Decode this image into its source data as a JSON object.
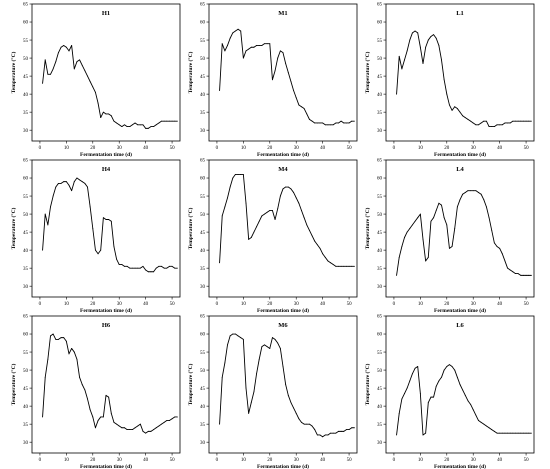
{
  "chart_data": [
    {
      "type": "line",
      "title": "H1",
      "xlabel": "Fermentation time (d)",
      "ylabel": "Temperature (°C)",
      "xlim": [
        -3,
        53
      ],
      "ylim": [
        27,
        65
      ],
      "xticks": [
        0,
        10,
        20,
        30,
        40,
        50
      ],
      "yticks": [
        30,
        35,
        40,
        45,
        50,
        55,
        60,
        65
      ],
      "x": [
        1,
        2,
        3,
        4,
        5,
        6,
        7,
        8,
        9,
        10,
        11,
        12,
        13,
        14,
        15,
        16,
        17,
        18,
        19,
        20,
        21,
        22,
        23,
        24,
        25,
        26,
        27,
        28,
        29,
        30,
        31,
        32,
        33,
        34,
        35,
        36,
        37,
        38,
        39,
        40,
        41,
        42,
        43,
        44,
        45,
        46,
        47,
        48,
        49,
        50,
        51,
        52
      ],
      "y": [
        43.0,
        49.5,
        45.5,
        45.5,
        47.0,
        49.0,
        51.5,
        53.0,
        53.5,
        53.0,
        52.0,
        53.5,
        47.0,
        49.0,
        49.5,
        48.0,
        46.5,
        45.0,
        43.5,
        42.0,
        40.5,
        37.5,
        33.5,
        35.0,
        34.5,
        34.5,
        34.0,
        32.5,
        32.0,
        31.5,
        31.0,
        31.5,
        31.0,
        31.0,
        31.5,
        32.0,
        31.5,
        31.5,
        31.5,
        30.5,
        30.5,
        31.0,
        31.0,
        31.5,
        32.0,
        32.5,
        32.5,
        32.5,
        32.5,
        32.5,
        32.5,
        32.5
      ]
    },
    {
      "type": "line",
      "title": "M1",
      "xlabel": "Fermentation time (d)",
      "ylabel": "Temperature (°C)",
      "xlim": [
        -3,
        53
      ],
      "ylim": [
        27,
        65
      ],
      "xticks": [
        0,
        10,
        20,
        30,
        40,
        50
      ],
      "yticks": [
        30,
        35,
        40,
        45,
        50,
        55,
        60,
        65
      ],
      "x": [
        1,
        2,
        3,
        4,
        5,
        6,
        7,
        8,
        9,
        10,
        11,
        12,
        13,
        14,
        15,
        16,
        17,
        18,
        19,
        20,
        21,
        22,
        23,
        24,
        25,
        26,
        27,
        28,
        29,
        30,
        31,
        32,
        33,
        34,
        35,
        36,
        37,
        38,
        39,
        40,
        41,
        42,
        43,
        44,
        45,
        46,
        47,
        48,
        49,
        50,
        51,
        52
      ],
      "y": [
        41.0,
        54.0,
        52.0,
        53.5,
        55.5,
        57.0,
        57.5,
        58.0,
        57.5,
        50.0,
        52.0,
        52.5,
        53.0,
        53.0,
        53.5,
        53.5,
        53.5,
        54.0,
        54.0,
        54.0,
        44.0,
        46.5,
        50.0,
        52.0,
        51.5,
        48.5,
        46.0,
        43.5,
        41.0,
        39.0,
        37.0,
        36.5,
        36.0,
        34.5,
        33.0,
        32.5,
        32.0,
        32.0,
        32.0,
        32.0,
        31.5,
        31.5,
        31.5,
        31.5,
        32.0,
        32.0,
        32.5,
        32.0,
        32.0,
        32.0,
        32.5,
        32.5
      ]
    },
    {
      "type": "line",
      "title": "L1",
      "xlabel": "Fermentation time (d)",
      "ylabel": "Temperature (°C)",
      "xlim": [
        -3,
        53
      ],
      "ylim": [
        27,
        65
      ],
      "xticks": [
        0,
        10,
        20,
        30,
        40,
        50
      ],
      "yticks": [
        30,
        35,
        40,
        45,
        50,
        55,
        60,
        65
      ],
      "x": [
        1,
        2,
        3,
        4,
        5,
        6,
        7,
        8,
        9,
        10,
        11,
        12,
        13,
        14,
        15,
        16,
        17,
        18,
        19,
        20,
        21,
        22,
        23,
        24,
        25,
        26,
        27,
        28,
        29,
        30,
        31,
        32,
        33,
        34,
        35,
        36,
        37,
        38,
        39,
        40,
        41,
        42,
        43,
        44,
        45,
        46,
        47,
        48,
        49,
        50,
        51,
        52
      ],
      "y": [
        40.0,
        50.5,
        47.0,
        49.5,
        52.0,
        55.0,
        57.0,
        57.5,
        57.0,
        53.0,
        48.5,
        53.0,
        55.0,
        56.0,
        56.5,
        55.5,
        53.5,
        49.5,
        44.0,
        40.0,
        37.0,
        35.5,
        36.5,
        36.0,
        35.0,
        34.0,
        33.5,
        33.0,
        32.5,
        32.0,
        31.5,
        31.5,
        32.0,
        32.5,
        32.5,
        31.0,
        31.0,
        31.0,
        31.5,
        31.5,
        31.5,
        32.0,
        32.0,
        32.0,
        32.5,
        32.5,
        32.5,
        32.5,
        32.5,
        32.5,
        32.5,
        32.5
      ]
    },
    {
      "type": "line",
      "title": "H4",
      "xlabel": "Fermentation time (d)",
      "ylabel": "Temperature (°C)",
      "xlim": [
        -3,
        53
      ],
      "ylim": [
        27,
        65
      ],
      "xticks": [
        0,
        10,
        20,
        30,
        40,
        50
      ],
      "yticks": [
        30,
        35,
        40,
        45,
        50,
        55,
        60,
        65
      ],
      "x": [
        1,
        2,
        3,
        4,
        5,
        6,
        7,
        8,
        9,
        10,
        11,
        12,
        13,
        14,
        15,
        16,
        17,
        18,
        19,
        20,
        21,
        22,
        23,
        24,
        25,
        26,
        27,
        28,
        29,
        30,
        31,
        32,
        33,
        34,
        35,
        36,
        37,
        38,
        39,
        40,
        41,
        42,
        43,
        44,
        45,
        46,
        47,
        48,
        49,
        50,
        51,
        52
      ],
      "y": [
        40.0,
        50.0,
        47.0,
        52.0,
        55.0,
        57.5,
        58.5,
        58.5,
        59.0,
        59.0,
        58.0,
        56.5,
        59.0,
        60.0,
        59.5,
        59.0,
        58.5,
        57.5,
        52.0,
        46.0,
        40.0,
        39.0,
        40.0,
        49.0,
        48.5,
        48.5,
        48.0,
        41.0,
        37.5,
        36.0,
        36.0,
        35.5,
        35.5,
        35.0,
        35.0,
        35.0,
        35.0,
        35.0,
        35.5,
        34.5,
        34.0,
        34.0,
        34.0,
        35.0,
        35.5,
        35.5,
        35.0,
        35.0,
        35.5,
        35.5,
        35.0,
        35.0
      ]
    },
    {
      "type": "line",
      "title": "M4",
      "xlabel": "Fermentation time (d)",
      "ylabel": "Temperature (°C)",
      "xlim": [
        -3,
        53
      ],
      "ylim": [
        27,
        65
      ],
      "xticks": [
        0,
        10,
        20,
        30,
        40,
        50
      ],
      "yticks": [
        30,
        35,
        40,
        45,
        50,
        55,
        60,
        65
      ],
      "x": [
        1,
        2,
        3,
        4,
        5,
        6,
        7,
        8,
        9,
        10,
        11,
        12,
        13,
        14,
        15,
        16,
        17,
        18,
        19,
        20,
        21,
        22,
        23,
        24,
        25,
        26,
        27,
        28,
        29,
        30,
        31,
        32,
        33,
        34,
        35,
        36,
        37,
        38,
        39,
        40,
        41,
        42,
        43,
        44,
        45,
        46,
        47,
        48,
        49,
        50,
        51,
        52
      ],
      "y": [
        36.5,
        49.5,
        52.0,
        54.5,
        57.5,
        60.0,
        61.0,
        61.0,
        61.0,
        61.0,
        53.0,
        43.0,
        43.5,
        45.0,
        46.5,
        48.0,
        49.5,
        50.0,
        50.5,
        51.0,
        51.0,
        48.5,
        51.5,
        55.0,
        57.0,
        57.5,
        57.5,
        57.0,
        56.0,
        54.5,
        53.0,
        51.0,
        49.0,
        47.0,
        45.5,
        44.0,
        42.5,
        41.5,
        40.5,
        39.0,
        38.0,
        37.0,
        36.5,
        36.0,
        35.5,
        35.5,
        35.5,
        35.5,
        35.5,
        35.5,
        35.5,
        35.5
      ]
    },
    {
      "type": "line",
      "title": "L4",
      "xlabel": "Fermentation time (d)",
      "ylabel": "Temperature (°C)",
      "xlim": [
        -3,
        53
      ],
      "ylim": [
        27,
        65
      ],
      "xticks": [
        0,
        10,
        20,
        30,
        40,
        50
      ],
      "yticks": [
        30,
        35,
        40,
        45,
        50,
        55,
        60,
        65
      ],
      "x": [
        1,
        2,
        3,
        4,
        5,
        6,
        7,
        8,
        9,
        10,
        11,
        12,
        13,
        14,
        15,
        16,
        17,
        18,
        19,
        20,
        21,
        22,
        23,
        24,
        25,
        26,
        27,
        28,
        29,
        30,
        31,
        32,
        33,
        34,
        35,
        36,
        37,
        38,
        39,
        40,
        41,
        42,
        43,
        44,
        45,
        46,
        47,
        48,
        49,
        50,
        51,
        52
      ],
      "y": [
        33.0,
        38.0,
        41.0,
        43.5,
        45.0,
        46.0,
        47.0,
        48.0,
        49.0,
        50.0,
        43.0,
        37.0,
        38.0,
        48.0,
        49.0,
        51.0,
        53.0,
        52.5,
        49.0,
        47.0,
        40.5,
        41.0,
        46.0,
        52.0,
        54.0,
        55.5,
        56.0,
        56.5,
        56.5,
        56.5,
        56.5,
        56.0,
        55.5,
        54.0,
        52.0,
        49.0,
        45.5,
        42.0,
        41.0,
        40.5,
        39.0,
        37.0,
        35.0,
        34.5,
        34.0,
        33.5,
        33.5,
        33.0,
        33.0,
        33.0,
        33.0,
        33.0
      ]
    },
    {
      "type": "line",
      "title": "H6",
      "xlabel": "Fermentation time (d)",
      "ylabel": "Temperature (°C)",
      "xlim": [
        -3,
        53
      ],
      "ylim": [
        27,
        65
      ],
      "xticks": [
        0,
        10,
        20,
        30,
        40,
        50
      ],
      "yticks": [
        30,
        35,
        40,
        45,
        50,
        55,
        60,
        65
      ],
      "x": [
        1,
        2,
        3,
        4,
        5,
        6,
        7,
        8,
        9,
        10,
        11,
        12,
        13,
        14,
        15,
        16,
        17,
        18,
        19,
        20,
        21,
        22,
        23,
        24,
        25,
        26,
        27,
        28,
        29,
        30,
        31,
        32,
        33,
        34,
        35,
        36,
        37,
        38,
        39,
        40,
        41,
        42,
        43,
        44,
        45,
        46,
        47,
        48,
        49,
        50,
        51,
        52
      ],
      "y": [
        37.0,
        48.0,
        53.0,
        59.5,
        60.0,
        58.5,
        58.5,
        59.0,
        59.0,
        58.0,
        54.5,
        56.0,
        55.0,
        53.0,
        48.0,
        46.0,
        44.5,
        42.0,
        39.0,
        37.0,
        34.0,
        36.0,
        37.0,
        37.0,
        43.0,
        42.5,
        38.0,
        35.5,
        35.0,
        34.5,
        34.0,
        34.0,
        33.5,
        33.5,
        33.5,
        34.0,
        34.5,
        35.0,
        33.0,
        32.5,
        33.0,
        33.0,
        33.5,
        34.0,
        34.5,
        35.0,
        35.5,
        36.0,
        36.0,
        36.5,
        37.0,
        37.0
      ]
    },
    {
      "type": "line",
      "title": "M6",
      "xlabel": "Fermentation time (d)",
      "ylabel": "Temperature (°C)",
      "xlim": [
        -3,
        53
      ],
      "ylim": [
        27,
        65
      ],
      "xticks": [
        0,
        10,
        20,
        30,
        40,
        50
      ],
      "yticks": [
        30,
        35,
        40,
        45,
        50,
        55,
        60,
        65
      ],
      "x": [
        1,
        2,
        3,
        4,
        5,
        6,
        7,
        8,
        9,
        10,
        11,
        12,
        13,
        14,
        15,
        16,
        17,
        18,
        19,
        20,
        21,
        22,
        23,
        24,
        25,
        26,
        27,
        28,
        29,
        30,
        31,
        32,
        33,
        34,
        35,
        36,
        37,
        38,
        39,
        40,
        41,
        42,
        43,
        44,
        45,
        46,
        47,
        48,
        49,
        50,
        51,
        52
      ],
      "y": [
        35.0,
        48.0,
        52.0,
        57.0,
        59.5,
        60.0,
        60.0,
        59.5,
        59.0,
        58.5,
        45.0,
        38.0,
        41.0,
        44.0,
        49.0,
        53.0,
        56.5,
        57.0,
        56.5,
        56.0,
        59.0,
        58.5,
        57.5,
        56.0,
        51.0,
        46.0,
        43.0,
        41.0,
        39.5,
        38.0,
        36.5,
        35.5,
        35.0,
        35.0,
        35.0,
        34.5,
        33.5,
        32.0,
        32.0,
        31.5,
        32.0,
        32.0,
        32.5,
        32.5,
        32.5,
        33.0,
        33.0,
        33.0,
        33.5,
        33.5,
        34.0,
        34.0
      ]
    },
    {
      "type": "line",
      "title": "L6",
      "xlabel": "Fermentation time (d)",
      "ylabel": "Temperature (°C)",
      "xlim": [
        -3,
        53
      ],
      "ylim": [
        27,
        65
      ],
      "xticks": [
        0,
        10,
        20,
        30,
        40,
        50
      ],
      "yticks": [
        30,
        35,
        40,
        45,
        50,
        55,
        60,
        65
      ],
      "x": [
        1,
        2,
        3,
        4,
        5,
        6,
        7,
        8,
        9,
        10,
        11,
        12,
        13,
        14,
        15,
        16,
        17,
        18,
        19,
        20,
        21,
        22,
        23,
        24,
        25,
        26,
        27,
        28,
        29,
        30,
        31,
        32,
        33,
        34,
        35,
        36,
        37,
        38,
        39,
        40,
        41,
        42,
        43,
        44,
        45,
        46,
        47,
        48,
        49,
        50,
        51,
        52
      ],
      "y": [
        32.0,
        38.0,
        42.0,
        43.5,
        45.0,
        47.0,
        49.0,
        50.5,
        51.0,
        43.5,
        32.0,
        32.5,
        41.0,
        42.5,
        42.5,
        45.5,
        47.0,
        48.0,
        50.0,
        51.0,
        51.5,
        51.0,
        50.0,
        48.0,
        46.0,
        44.5,
        43.0,
        41.5,
        40.5,
        39.0,
        37.5,
        36.0,
        35.5,
        35.0,
        34.5,
        34.0,
        33.5,
        33.0,
        32.5,
        32.5,
        32.5,
        32.5,
        32.5,
        32.5,
        32.5,
        32.5,
        32.5,
        32.5,
        32.5,
        32.5,
        32.5,
        32.5
      ]
    }
  ]
}
